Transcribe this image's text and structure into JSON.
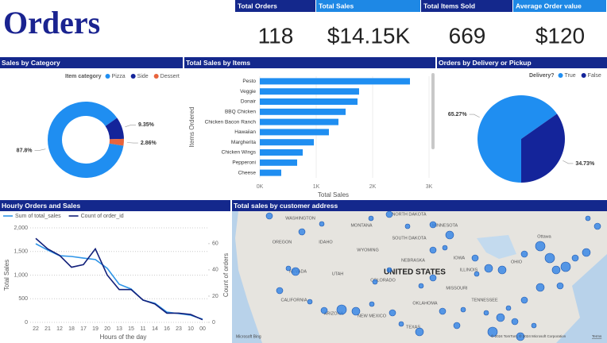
{
  "title": "Orders",
  "kpis": [
    {
      "label": "Total Orders",
      "value": "118"
    },
    {
      "label": "Total Sales",
      "value": "$14.15K"
    },
    {
      "label": "Total Items Sold",
      "value": "669"
    },
    {
      "label": "Average Order value",
      "value": "$120"
    }
  ],
  "chart_data": [
    {
      "type": "donut",
      "title": "Sales by Category",
      "legend_title": "Item category",
      "categories": [
        "Pizza",
        "Side",
        "Dessert"
      ],
      "values": [
        87.8,
        9.35,
        2.86
      ],
      "value_labels": [
        "87.8%",
        "9.35%",
        "2.86%"
      ],
      "colors": [
        "#1f8ef1",
        "#14249a",
        "#e8643c"
      ]
    },
    {
      "type": "bar",
      "orientation": "horizontal",
      "title": "Total Sales by Items",
      "categories": [
        "Pesto",
        "Veggie",
        "Donair",
        "BBQ Chicken",
        "Chicken Bacon Ranch",
        "Hawaiian",
        "Margherita",
        "Chicken Wings",
        "Pepperoni",
        "Cheese"
      ],
      "values": [
        2662,
        1760,
        1732,
        1521,
        1394,
        1225,
        958,
        761,
        662,
        380
      ],
      "color": "#1f8ef1",
      "xlim": [
        0,
        3000
      ],
      "xticks": [
        {
          "value": 0,
          "label": "0K"
        },
        {
          "value": 1000,
          "label": "1K"
        },
        {
          "value": 2000,
          "label": "2K"
        },
        {
          "value": 3000,
          "label": "3K"
        }
      ],
      "x_label": "Total Sales",
      "y_label": "Items Ordered",
      "grid": true
    },
    {
      "type": "pie",
      "title": "Orders by Delivery or Pickup",
      "legend_title": "Delivery?",
      "categories": [
        "True",
        "False"
      ],
      "values": [
        65.27,
        34.73
      ],
      "value_labels": [
        "65.27%",
        "34.73%"
      ],
      "colors": [
        "#1f8ef1",
        "#14249a"
      ]
    },
    {
      "type": "line",
      "title": "Hourly Orders and Sales",
      "categories": [
        "22",
        "21",
        "12",
        "18",
        "17",
        "19",
        "20",
        "13",
        "15",
        "11",
        "14",
        "16",
        "23",
        "10",
        "00"
      ],
      "series": [
        {
          "name": "Sum of total_sales",
          "color": "#2f95e8",
          "values": [
            1664,
            1530,
            1410,
            1395,
            1360,
            1330,
            1143,
            807,
            706,
            470,
            403,
            218,
            185,
            151,
            67
          ]
        },
        {
          "name": "Count of order_id",
          "color": "#12207a",
          "axis": "y2",
          "values": [
            64,
            56,
            51,
            42,
            44,
            56,
            36,
            25,
            25,
            17,
            14,
            7,
            7,
            6,
            2
          ]
        }
      ],
      "ylim": [
        0,
        2000
      ],
      "yticks": [
        0,
        500,
        {
          "value": 1000,
          "label": "1,000"
        },
        {
          "value": 1500,
          "label": "1,500"
        },
        {
          "value": 2000,
          "label": "2,000"
        }
      ],
      "y2lim": [
        0,
        72
      ],
      "y2ticks": [
        0,
        20,
        40,
        60
      ],
      "x_label": "Hours of the day",
      "y_label": "Total Sales",
      "y2_label": "Count of orders",
      "grid": true
    }
  ],
  "map": {
    "title": "Total sales by customer address",
    "labels": [
      "WASHINGTON",
      "MONTANA",
      "NORTH DAKOTA",
      "MINNESOTA",
      "SOUTH DAKOTA",
      "OREGON",
      "IDAHO",
      "WYOMING",
      "NEBRASKA",
      "IOWA",
      "NEVADA",
      "UTAH",
      "COLORADO",
      "UNITED STATES",
      "ILLINOIS",
      "OHIO",
      "MISSOURI",
      "CALIFORNIA",
      "ARIZONA",
      "NEW MEXICO",
      "OKLAHOMA",
      "TENNESSEE",
      "TEXAS",
      "Ottawa"
    ],
    "brand": "Microsoft Bing",
    "attribution": "© 2024 TomTom, © 2024 Microsoft Corporation",
    "terms": "Terms"
  }
}
